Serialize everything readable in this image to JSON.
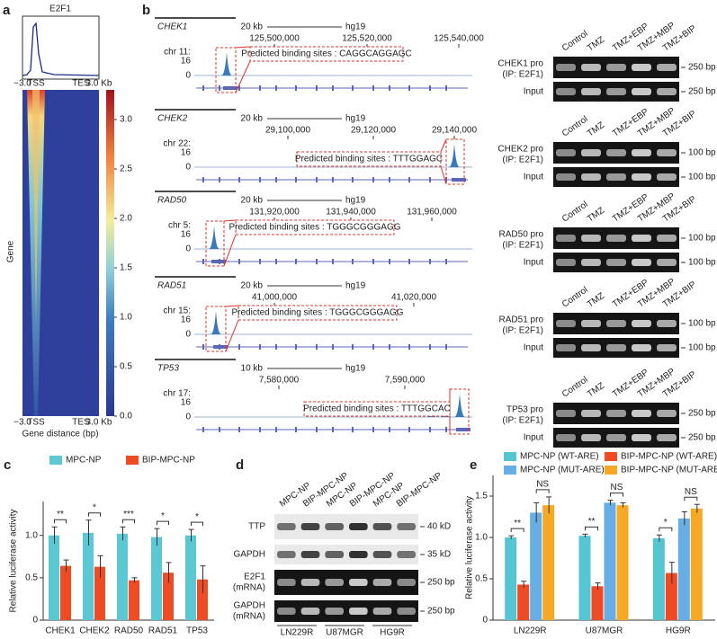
{
  "panel_a": {
    "label": "a",
    "title": "E2F1",
    "profile_xlabels": [
      "−3.0",
      "TSS",
      "TES",
      "3.0 Kb"
    ],
    "heatmap_xlabels": [
      "−3.0",
      "TSS",
      "TES",
      "3.0 Kb"
    ],
    "y_label": "Gene",
    "x_title": "Gene distance (bp)",
    "colorbar": {
      "lim": [
        0,
        3.3
      ],
      "ticks": [
        {
          "value": 0,
          "label": "0.0"
        },
        {
          "value": 0.5,
          "label": "0.5"
        },
        {
          "value": 1,
          "label": "1.0"
        },
        {
          "value": 1.5,
          "label": "1.5"
        },
        {
          "value": 2,
          "label": "2.0"
        },
        {
          "value": 2.5,
          "label": "2.5"
        },
        {
          "value": 3,
          "label": "3.0"
        }
      ]
    }
  },
  "panel_b": {
    "label": "b",
    "tracks": [
      {
        "gene": "CHEK1",
        "chr": "chr 11:",
        "scale": "20 kb",
        "genome": "hg19",
        "coords": [
          "125,500,000",
          "125,520,000",
          "125,540,000"
        ],
        "yticks": [
          16,
          0
        ],
        "site": "Predicted binding sites : CAGGCAGGAGC"
      },
      {
        "gene": "CHEK2",
        "chr": "chr 22:",
        "scale": "20 kb",
        "genome": "hg19",
        "coords": [
          "29,100,000",
          "29,120,000",
          "29,140,000"
        ],
        "yticks": [
          16,
          0
        ],
        "site": "Predicted binding sites : TTTGGAGC"
      },
      {
        "gene": "RAD50",
        "chr": "chr 5:",
        "scale": "20 kb",
        "genome": "hg19",
        "coords": [
          "131,920,000",
          "131,940,000",
          "131,960,000"
        ],
        "yticks": [
          16,
          0
        ],
        "site": "Predicted binding sites : TGGGCGGGAGG"
      },
      {
        "gene": "RAD51",
        "chr": "chr 15:",
        "scale": "20 kb",
        "genome": "hg19",
        "coords": [
          "41,000,000",
          "41,020,000"
        ],
        "yticks": [
          16,
          0
        ],
        "site": "Predicted binding sites : TGGGCGGGAGG"
      },
      {
        "gene": "TP53",
        "chr": "chr 17:",
        "scale": "10 kb",
        "genome": "hg19",
        "coords": [
          "7,580,000",
          "7,590,000"
        ],
        "yticks": [
          16,
          0
        ],
        "site": "Predicted binding sites : TTTGGCAC"
      }
    ],
    "gel_lanes": [
      "Control",
      "TMZ",
      "TMZ+EBP",
      "TMZ+MBP",
      "TMZ+BIP"
    ],
    "gels": [
      {
        "ip": "CHEK1 pro",
        "ip_sub": "(IP: E2F1)",
        "input": "Input",
        "sizes": [
          "250 bp",
          "250 bp"
        ]
      },
      {
        "ip": "CHEK2 pro",
        "ip_sub": "(IP: E2F1)",
        "input": "Input",
        "sizes": [
          "100 bp",
          "100 bp"
        ]
      },
      {
        "ip": "RAD50 pro",
        "ip_sub": "(IP: E2F1)",
        "input": "Input",
        "sizes": [
          "100 bp",
          "100 bp"
        ]
      },
      {
        "ip": "RAD51 pro",
        "ip_sub": "(IP: E2F1)",
        "input": "Input",
        "sizes": [
          "100 bp",
          "100 bp"
        ]
      },
      {
        "ip": "TP53 pro",
        "ip_sub": "(IP: E2F1)",
        "input": "Input",
        "sizes": [
          "250 bp",
          "250 bp"
        ]
      }
    ]
  },
  "panel_d": {
    "label": "d",
    "lanes": [
      "MPC-NP",
      "BIP-MPC-NP",
      "MPC-NP",
      "BIP-MPC-NP",
      "MPC-NP",
      "BIP-MPC-NP"
    ],
    "rows": [
      {
        "name": "TTP",
        "size": "40 kD"
      },
      {
        "name": "GAPDH",
        "size": "35 kD"
      },
      {
        "name": "E2F1",
        "sub": "(mRNA)",
        "size": "250 bp"
      },
      {
        "name": "GAPDH",
        "sub": "(mRNA)",
        "size": "250 bp"
      }
    ],
    "groups": [
      "LN229R",
      "U87MGR",
      "HG9R"
    ]
  },
  "chart_data": [
    {
      "type": "bar",
      "label": "c",
      "categories": [
        "CHEK1",
        "CHEK2",
        "RAD50",
        "RAD51",
        "TP53"
      ],
      "y_label": "Relative luciferase activity",
      "series": [
        {
          "name": "MPC-NP",
          "color": "#5bc8d3",
          "values": [
            1.0,
            1.03,
            1.02,
            0.98,
            1.0
          ],
          "errors": [
            0.1,
            0.15,
            0.08,
            0.1,
            0.07
          ]
        },
        {
          "name": "BIP-MPC-NP",
          "color": "#ef4c23",
          "values": [
            0.64,
            0.63,
            0.47,
            0.56,
            0.48
          ],
          "errors": [
            0.07,
            0.13,
            0.03,
            0.12,
            0.16
          ]
        }
      ],
      "significance": [
        [
          "**"
        ],
        [
          "*"
        ],
        [
          "***"
        ],
        [
          "*"
        ],
        [
          "*"
        ]
      ],
      "ylim": [
        0,
        1.4
      ],
      "yticks": [
        0,
        0.5,
        {
          "value": 1,
          "label": "1.0"
        }
      ]
    },
    {
      "type": "bar",
      "label": "e",
      "categories": [
        "LN229R",
        "U87MGR",
        "HG9R"
      ],
      "y_label": "Relative luciferase activity",
      "series": [
        {
          "name": "MPC-NP (WT-ARE)",
          "color": "#55c5d1",
          "values": [
            1.0,
            1.02,
            0.99
          ],
          "errors": [
            0.02,
            0.02,
            0.04
          ]
        },
        {
          "name": "BIP-MPC-NP (WT-ARE)",
          "color": "#ee4b25",
          "values": [
            0.43,
            0.41,
            0.57
          ],
          "errors": [
            0.04,
            0.04,
            0.13
          ]
        },
        {
          "name": "MPC-NP (MUT-ARE)",
          "color": "#66aee4",
          "values": [
            1.3,
            1.42,
            1.23
          ],
          "errors": [
            0.12,
            0.03,
            0.08
          ]
        },
        {
          "name": "BIP-MPC-NP (MUT-ARE)",
          "color": "#f7a825",
          "values": [
            1.39,
            1.39,
            1.35
          ],
          "errors": [
            0.1,
            0.03,
            0.05
          ]
        }
      ],
      "significance": [
        [
          "**",
          "NS"
        ],
        [
          "**",
          "NS"
        ],
        [
          "*",
          "NS"
        ]
      ],
      "ylim": [
        0,
        1.75
      ],
      "yticks": [
        0,
        0.5,
        {
          "value": 1,
          "label": "1.0"
        },
        1.5
      ]
    }
  ]
}
